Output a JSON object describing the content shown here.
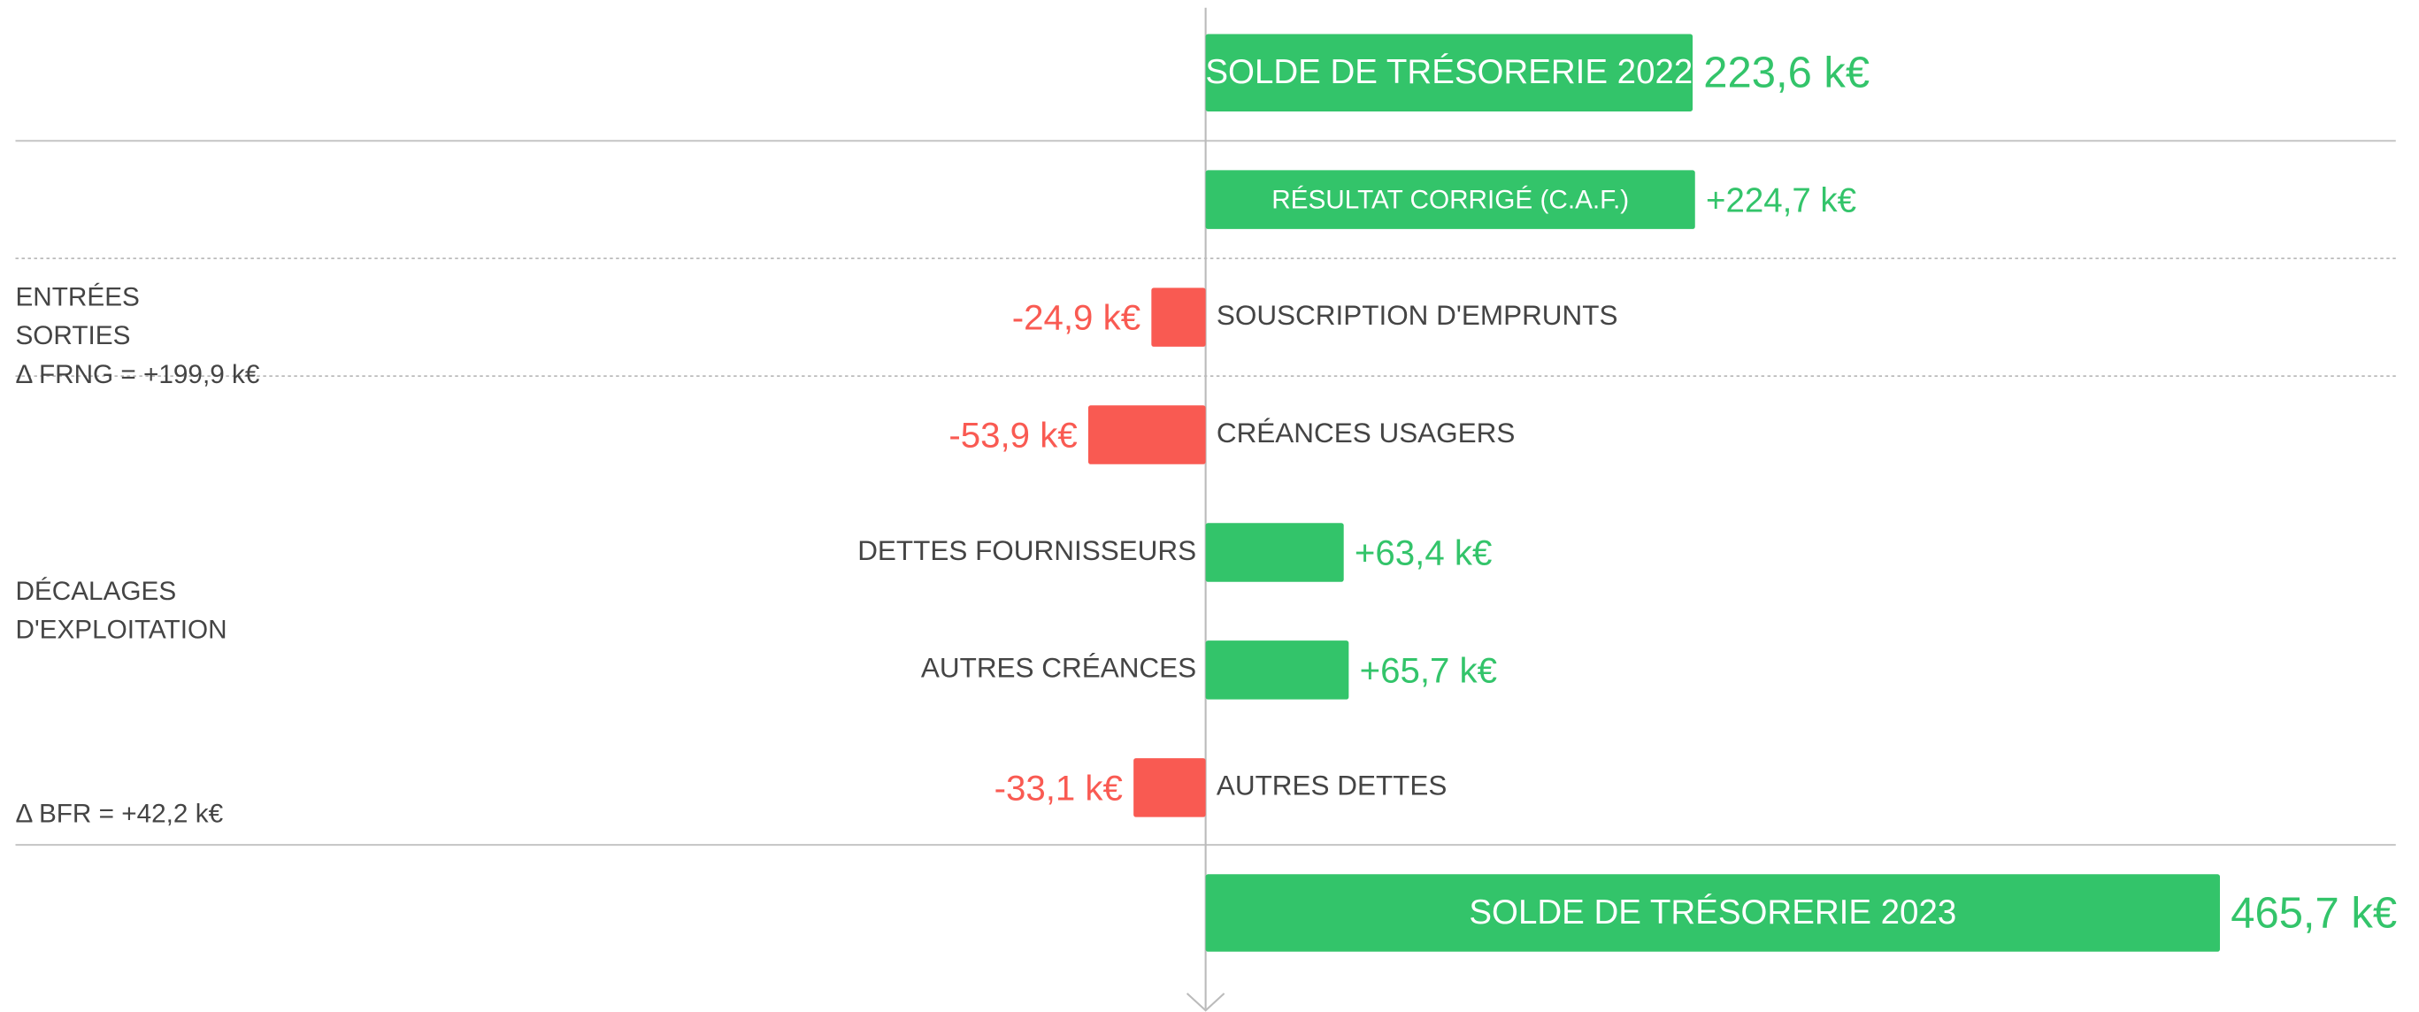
{
  "chart_data": {
    "type": "diverging-bar",
    "categories": [
      "SOLDE DE TRÉSORERIE 2022",
      "RÉSULTAT CORRIGÉ (C.A.F.)",
      "SOUSCRIPTION D'EMPRUNTS",
      "CRÉANCES USAGERS",
      "DETTES FOURNISSEURS",
      "AUTRES CRÉANCES",
      "AUTRES DETTES",
      "SOLDE DE TRÉSORERIE 2023"
    ],
    "values": [
      223.6,
      224.7,
      -24.9,
      -53.9,
      63.4,
      65.7,
      -33.1,
      465.7
    ],
    "value_labels": [
      "223,6 k€",
      "+224,7 k€",
      "-24,9 k€",
      "-53,9 k€",
      "+63,4 k€",
      "+65,7 k€",
      "-33,1 k€",
      "465,7 k€"
    ],
    "positive_color": "#33c46a",
    "negative_color": "#f95a52",
    "xlim": [
      -550,
      550
    ],
    "annotations": [
      "ENTRÉES",
      "SORTIES",
      "Δ FRNG = +199,9 k€",
      "DÉCALAGES",
      "D'EXPLOITATION",
      "Δ BFR = +42,2 k€"
    ]
  }
}
